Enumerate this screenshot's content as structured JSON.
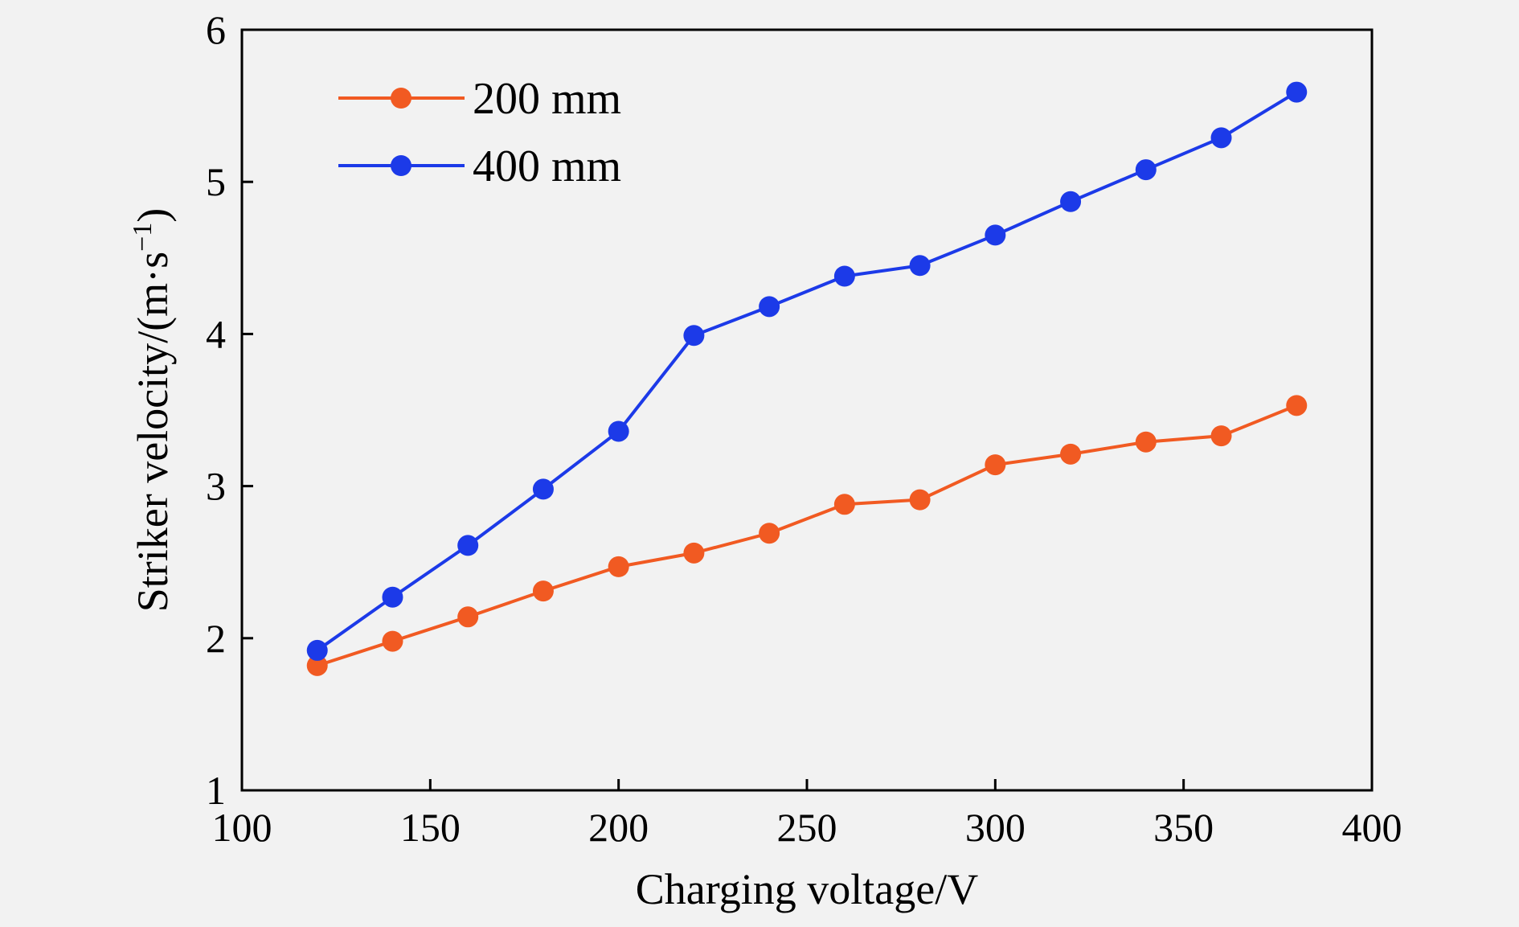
{
  "chart_data": {
    "type": "line",
    "title": "",
    "xlabel": "Charging voltage/V",
    "ylabel": "Striker velocity/(m·s",
    "ylabel_sup": "−1",
    "ylabel_close": ")",
    "xlim": [
      100,
      400
    ],
    "ylim": [
      1,
      6
    ],
    "xticks": [
      100,
      150,
      200,
      250,
      300,
      350,
      400
    ],
    "yticks": [
      1,
      2,
      3,
      4,
      5,
      6
    ],
    "grid": false,
    "legend_position": "top-left",
    "x": [
      120,
      140,
      160,
      180,
      200,
      220,
      240,
      260,
      280,
      300,
      320,
      340,
      360,
      380
    ],
    "series": [
      {
        "name": "200 mm",
        "color": "#f15a22",
        "values": [
          1.82,
          1.98,
          2.14,
          2.31,
          2.47,
          2.56,
          2.69,
          2.88,
          2.91,
          3.14,
          3.21,
          3.29,
          3.33,
          3.53
        ]
      },
      {
        "name": "400 mm",
        "color": "#1c3ae8",
        "values": [
          1.92,
          2.27,
          2.61,
          2.98,
          3.36,
          3.99,
          4.18,
          4.38,
          4.45,
          4.65,
          4.87,
          5.08,
          5.29,
          5.59
        ]
      }
    ]
  }
}
